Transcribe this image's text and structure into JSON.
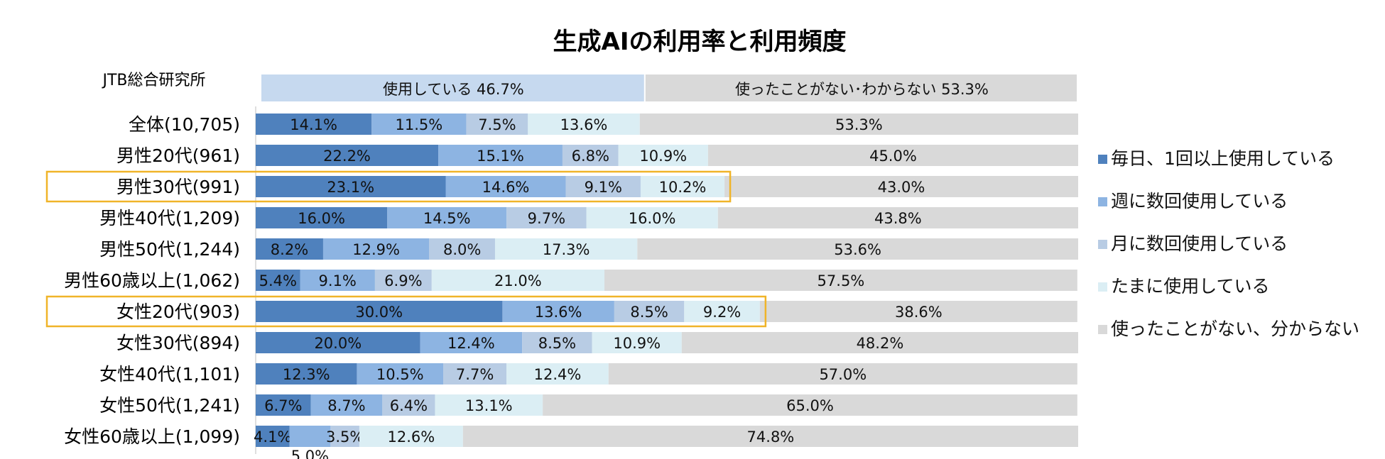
{
  "chart_data": {
    "type": "bar",
    "orientation": "horizontal",
    "stacked": true,
    "title": "生成AIの利用率と利用頻度",
    "source": "JTB総合研究所",
    "summary_header": [
      {
        "label": "使用している",
        "value": "46.7%",
        "color": "#c6d9ef"
      },
      {
        "label": "使ったことがない･わからない",
        "value": "53.3%",
        "color": "#d9d9d9"
      }
    ],
    "categories": [
      "全体(10,705)",
      "男性20代(961)",
      "男性30代(991)",
      "男性40代(1,209)",
      "男性50代(1,244)",
      "男性60歳以上(1,062)",
      "女性20代(903)",
      "女性30代(894)",
      "女性40代(1,101)",
      "女性50代(1,241)",
      "女性60歳以上(1,099)"
    ],
    "highlighted_categories": [
      "男性30代(991)",
      "女性20代(903)"
    ],
    "highlight_color": "#f0b429",
    "series": [
      {
        "name": "毎日、1回以上使用している",
        "color": "#4f81bd",
        "values": [
          14.1,
          22.2,
          23.1,
          16.0,
          8.2,
          5.4,
          30.0,
          20.0,
          12.3,
          6.7,
          4.1
        ]
      },
      {
        "name": "週に数回使用している",
        "color": "#8db4e2",
        "values": [
          11.5,
          15.1,
          14.6,
          14.5,
          12.9,
          9.1,
          13.6,
          12.4,
          10.5,
          8.7,
          5.0
        ]
      },
      {
        "name": "月に数回使用している",
        "color": "#b8cce4",
        "values": [
          7.5,
          6.8,
          9.1,
          9.7,
          8.0,
          6.9,
          8.5,
          8.5,
          7.7,
          6.4,
          3.5
        ]
      },
      {
        "name": "たまに使用している",
        "color": "#dbeef4",
        "values": [
          13.6,
          10.9,
          10.2,
          16.0,
          17.3,
          21.0,
          9.2,
          10.9,
          12.4,
          13.1,
          12.6
        ]
      },
      {
        "name": "使ったことがない、分からない",
        "color": "#d9d9d9",
        "values": [
          53.3,
          45.0,
          43.0,
          43.8,
          53.6,
          57.5,
          38.6,
          48.2,
          57.0,
          65.0,
          74.8
        ]
      }
    ],
    "value_format": "{v}%",
    "xlim": [
      0,
      100
    ],
    "legend": "right",
    "grid": false
  }
}
